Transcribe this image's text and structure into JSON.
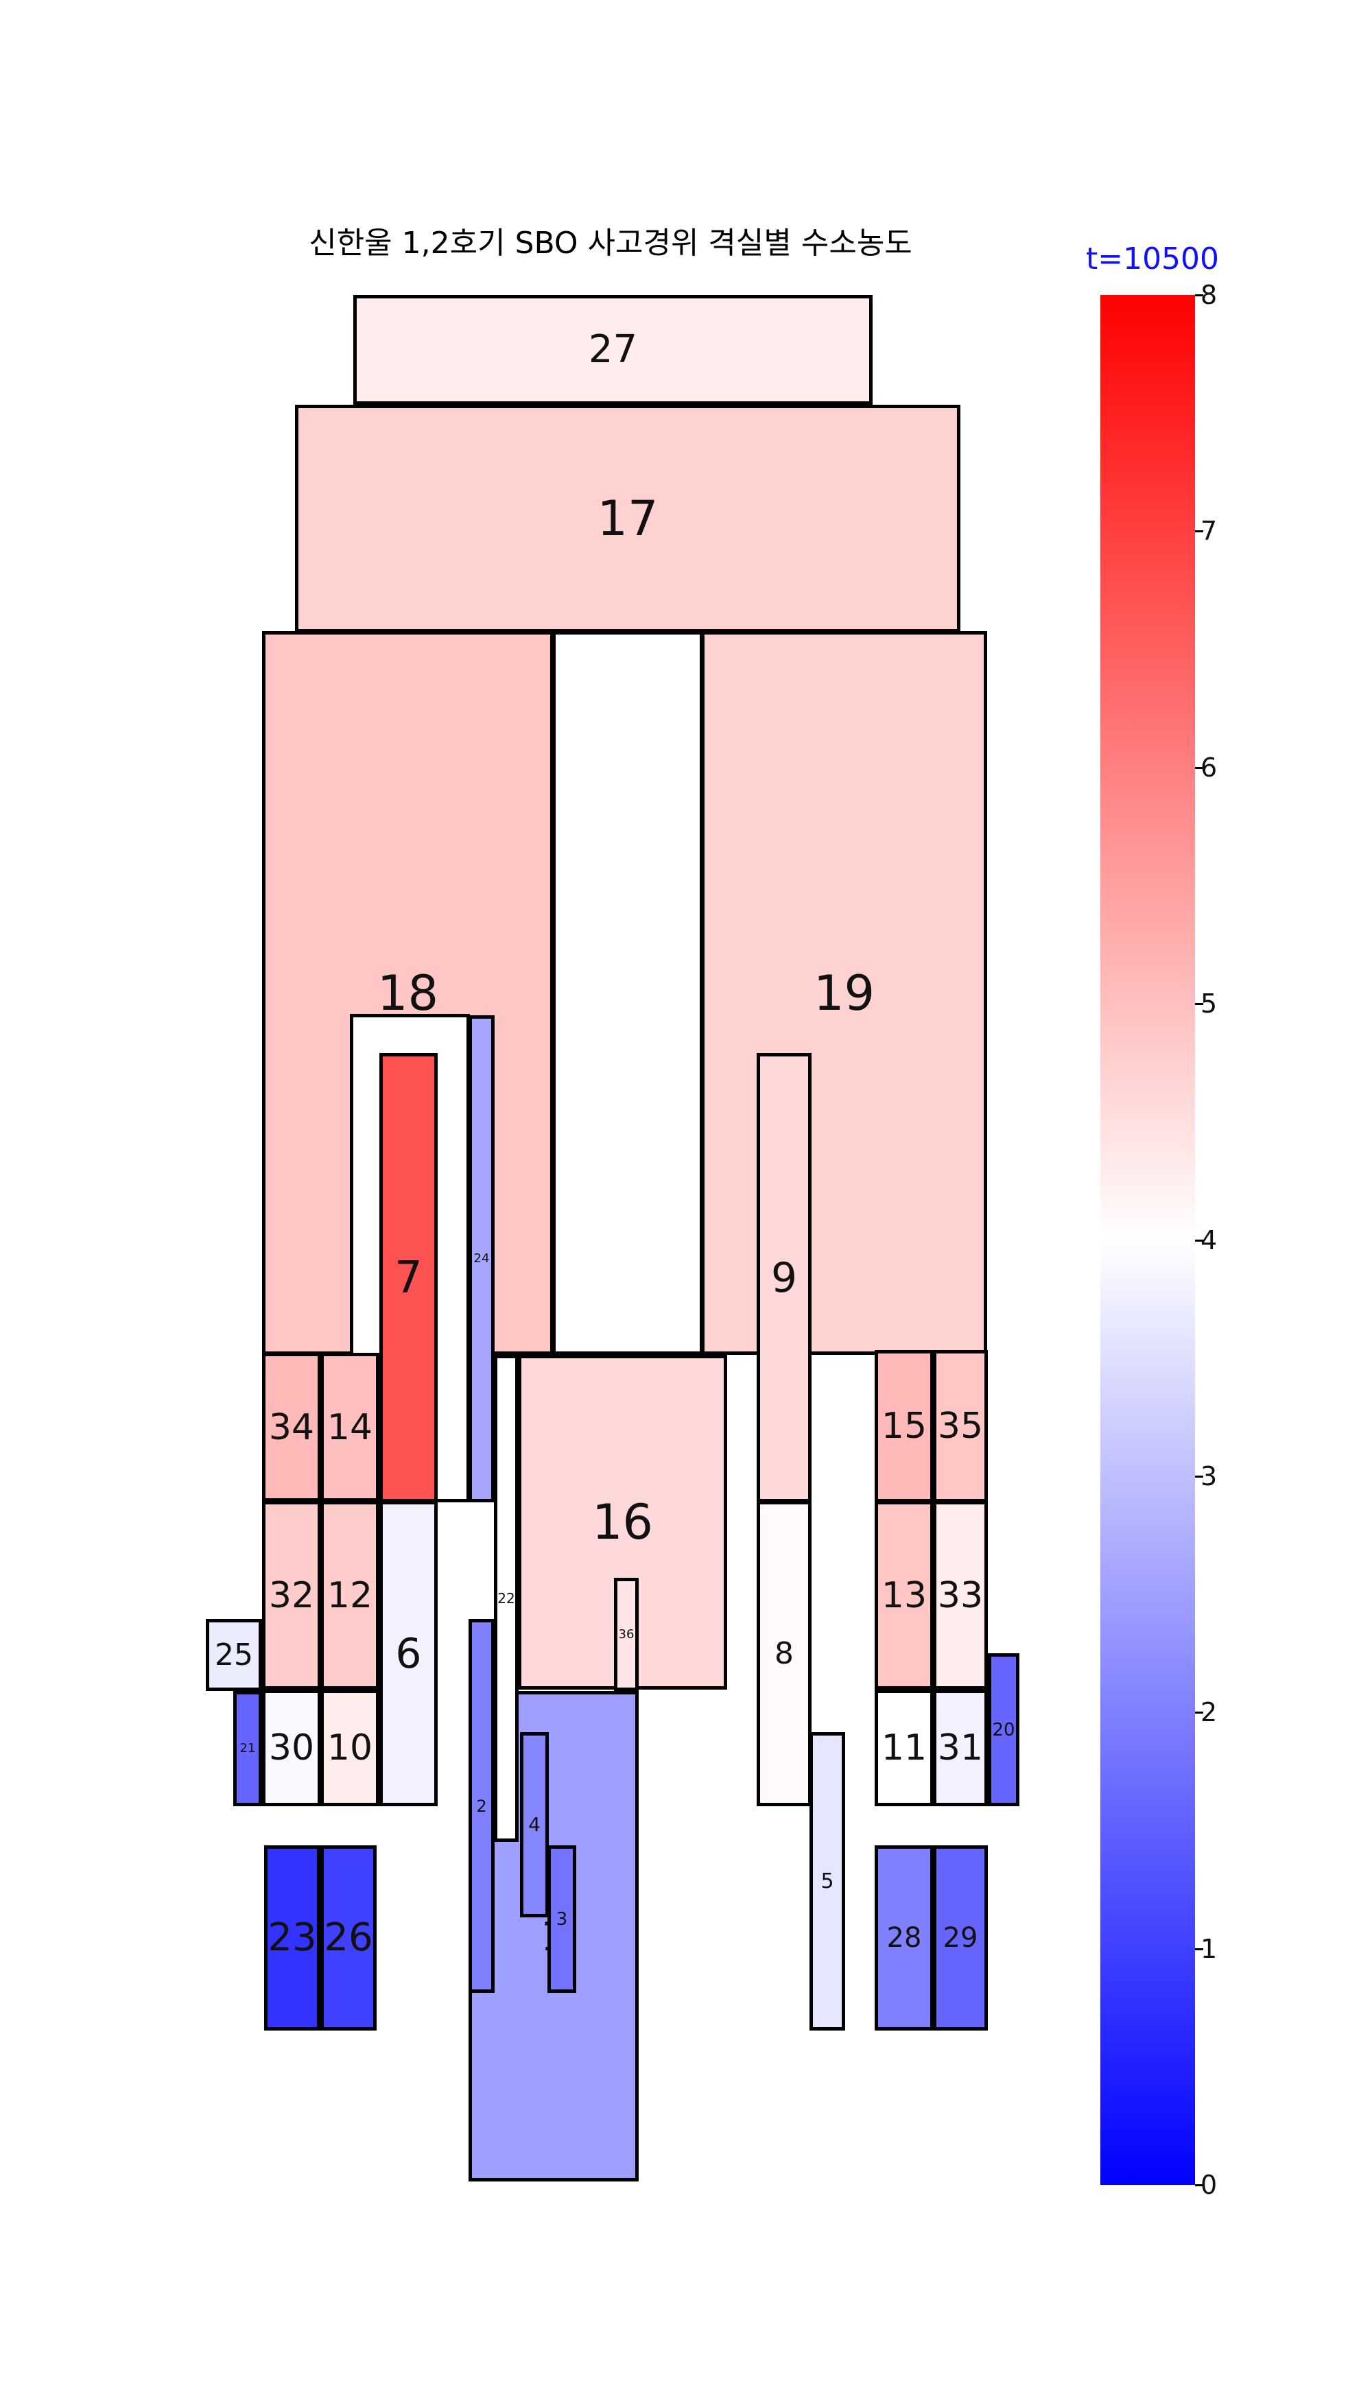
{
  "title": "신한울 1,2호기 SBO 사고경위 격실별 수소농도",
  "time_label": "t=10500",
  "colorbar": {
    "min": 0,
    "max": 8,
    "ticks": [
      "0",
      "1",
      "2",
      "3",
      "4",
      "5",
      "6",
      "7",
      "8"
    ],
    "low_color": "#0000ff",
    "mid_color": "#ffffff",
    "high_color": "#ff0000"
  },
  "rooms": [
    {
      "id": "27",
      "value": 4.3
    },
    {
      "id": "17",
      "value": 4.7
    },
    {
      "id": "18",
      "value": 4.9
    },
    {
      "id": "19",
      "value": 4.7
    },
    {
      "id": "7",
      "value": 6.7
    },
    {
      "id": "24",
      "value": 2.6
    },
    {
      "id": "9",
      "value": 4.6
    },
    {
      "id": "34",
      "value": 5.1
    },
    {
      "id": "14",
      "value": 5.0
    },
    {
      "id": "16",
      "value": 4.6
    },
    {
      "id": "15",
      "value": 5.1
    },
    {
      "id": "35",
      "value": 4.9
    },
    {
      "id": "32",
      "value": 4.8
    },
    {
      "id": "12",
      "value": 4.8
    },
    {
      "id": "6",
      "value": 3.8
    },
    {
      "id": "22",
      "value": 4.0
    },
    {
      "id": "36",
      "value": 4.4
    },
    {
      "id": "8",
      "value": 4.1
    },
    {
      "id": "13",
      "value": 4.9
    },
    {
      "id": "33",
      "value": 4.3
    },
    {
      "id": "25",
      "value": 3.7
    },
    {
      "id": "21",
      "value": 1.6
    },
    {
      "id": "30",
      "value": 3.9
    },
    {
      "id": "10",
      "value": 4.3
    },
    {
      "id": "2",
      "value": 2.0
    },
    {
      "id": "4",
      "value": 2.1
    },
    {
      "id": "3",
      "value": 1.8
    },
    {
      "id": "5",
      "value": 3.6
    },
    {
      "id": "11",
      "value": 4.0
    },
    {
      "id": "31",
      "value": 3.8
    },
    {
      "id": "20",
      "value": 1.6
    },
    {
      "id": "23",
      "value": 0.8
    },
    {
      "id": "26",
      "value": 1.0
    },
    {
      "id": "28",
      "value": 2.0
    },
    {
      "id": "29",
      "value": 1.6
    },
    {
      "id": "1",
      "value": 2.5
    }
  ]
}
